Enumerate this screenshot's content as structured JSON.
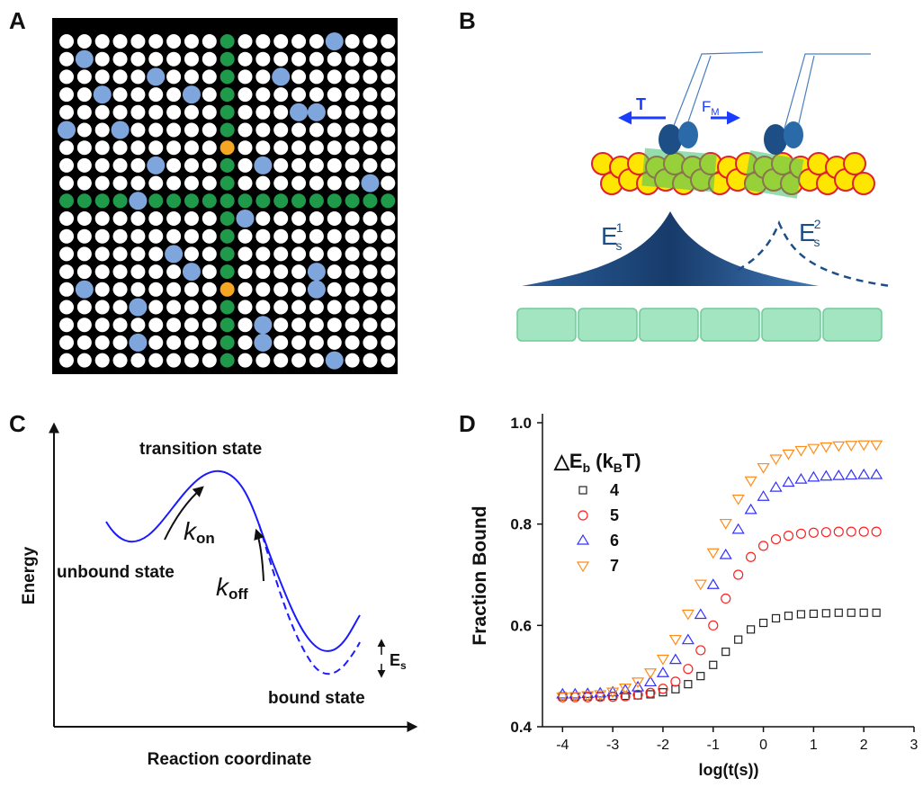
{
  "panel_labels": [
    "A",
    "B",
    "C",
    "D"
  ],
  "panel_b": {
    "tension": "T",
    "force": {
      "text": "F",
      "sub": "M"
    },
    "energy_1": {
      "text": "E",
      "sup": "1",
      "sub": "s"
    },
    "energy_2": {
      "text": "E",
      "sup": "2",
      "sub": "s"
    }
  },
  "panel_c": {
    "y_label": "Energy",
    "x_label": "Reaction coordinate",
    "transition": "transition state",
    "unbound": "unbound state",
    "bound": "bound state",
    "k_on": {
      "text": "k",
      "sub": "on"
    },
    "k_off": {
      "text": "k",
      "sub": "off"
    },
    "e_s": {
      "text": "E",
      "sub": "s"
    }
  },
  "chart_data": {
    "type": "scatter",
    "y_label": "Fraction  Bound",
    "x_label": "log(t(s))",
    "legend_title": {
      "text": "△E",
      "sub": "b",
      "unit": "(k",
      "unit_sub": "B",
      "unit_end": "T)"
    },
    "xlim": [
      -4.4,
      3
    ],
    "xticks": [
      -4,
      -3,
      -2,
      -1,
      0,
      1,
      2,
      3
    ],
    "ylim": [
      0.4,
      1
    ],
    "yticks": [
      0.4,
      0.6,
      0.8,
      {
        "value": 1,
        "label": "1.0"
      }
    ],
    "x": [
      -4,
      -3.75,
      -3.5,
      -3.25,
      -3,
      -2.75,
      -2.5,
      -2.25,
      -2,
      -1.75,
      -1.5,
      -1.25,
      -1,
      -0.75,
      -0.5,
      -0.25,
      0,
      0.25,
      0.5,
      0.75,
      1,
      1.25,
      1.5,
      1.75,
      2,
      2.25
    ],
    "series": [
      {
        "name": "4",
        "color": "#222222",
        "marker": "square",
        "values": [
          0.46,
          0.46,
          0.46,
          0.46,
          0.461,
          0.461,
          0.462,
          0.464,
          0.468,
          0.474,
          0.484,
          0.5,
          0.522,
          0.548,
          0.572,
          0.592,
          0.605,
          0.614,
          0.619,
          0.622,
          0.623,
          0.624,
          0.625,
          0.625,
          0.625,
          0.625
        ]
      },
      {
        "name": "5",
        "color": "#ff2020",
        "marker": "circle",
        "values": [
          0.458,
          0.458,
          0.458,
          0.459,
          0.459,
          0.46,
          0.463,
          0.467,
          0.475,
          0.489,
          0.514,
          0.551,
          0.6,
          0.653,
          0.7,
          0.735,
          0.757,
          0.77,
          0.777,
          0.781,
          0.783,
          0.784,
          0.785,
          0.785,
          0.785,
          0.785
        ]
      },
      {
        "name": "6",
        "color": "#3030ff",
        "marker": "triangle-up",
        "values": [
          0.464,
          0.464,
          0.465,
          0.466,
          0.468,
          0.472,
          0.478,
          0.488,
          0.506,
          0.532,
          0.571,
          0.621,
          0.68,
          0.739,
          0.789,
          0.828,
          0.854,
          0.872,
          0.882,
          0.888,
          0.892,
          0.894,
          0.895,
          0.896,
          0.897,
          0.897
        ]
      },
      {
        "name": "7",
        "color": "#ff8c1a",
        "marker": "triangle-down",
        "values": [
          0.459,
          0.46,
          0.462,
          0.464,
          0.469,
          0.477,
          0.489,
          0.507,
          0.534,
          0.573,
          0.623,
          0.682,
          0.744,
          0.802,
          0.85,
          0.886,
          0.912,
          0.929,
          0.939,
          0.946,
          0.95,
          0.953,
          0.955,
          0.956,
          0.957,
          0.957
        ]
      }
    ]
  }
}
